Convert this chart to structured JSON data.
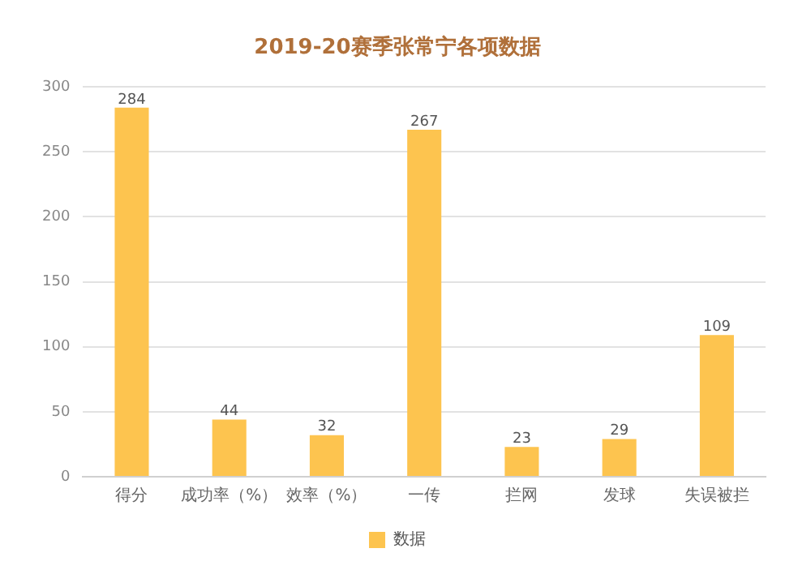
{
  "chart_data": {
    "type": "bar",
    "title": "2019-20赛季张常宁各项数据",
    "categories": [
      "得分",
      "成功率（%）",
      "效率（%）",
      "一传",
      "拦网",
      "发球",
      "失误被拦"
    ],
    "series": [
      {
        "name": "数据",
        "color": "#fdc44f",
        "values": [
          284,
          44,
          32,
          267,
          23,
          29,
          109
        ]
      }
    ],
    "ylim": [
      0,
      300
    ],
    "yticks": [
      0,
      50,
      100,
      150,
      200,
      250,
      300
    ],
    "grid": "y",
    "legend": "bottom",
    "data_labels": true
  }
}
